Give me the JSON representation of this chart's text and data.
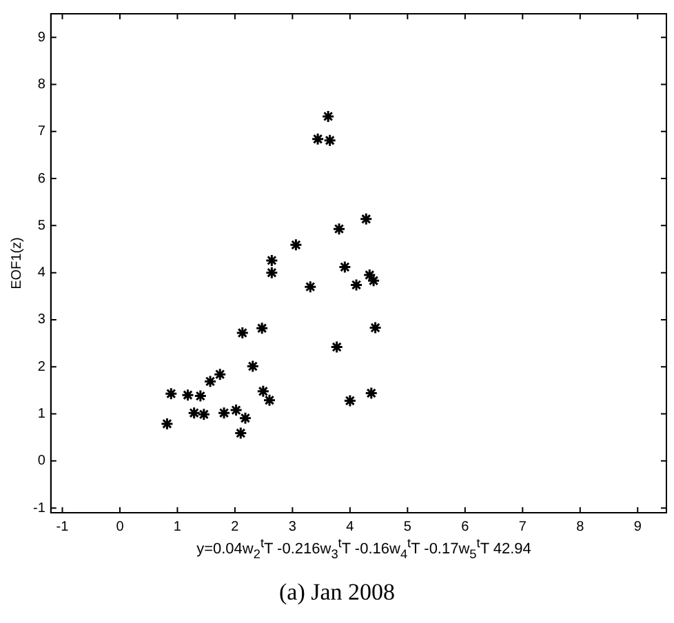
{
  "chart_data": {
    "type": "scatter",
    "xlabel": "y=0.04w$_{2}$$^{t}$T -0.216w$_{3}$$^{t}$T -0.16w$_{4}$$^{t}$T -0.17w$_{5}$$^{t}$T 42.94",
    "ylabel": "EOF1(z)",
    "annotations": [
      "(a) Jan 2008"
    ],
    "x": [
      0.82,
      0.89,
      1.18,
      1.4,
      1.29,
      1.46,
      1.57,
      1.74,
      1.81,
      2.02,
      2.18,
      2.1,
      2.13,
      2.31,
      2.47,
      2.49,
      2.6,
      2.64,
      2.64,
      3.06,
      3.31,
      3.91,
      4.11,
      4.34,
      4.41,
      4.44,
      3.77,
      4.0,
      4.37,
      3.62,
      3.44,
      3.65,
      4.28,
      3.81
    ],
    "values": [
      0.79,
      1.43,
      1.4,
      1.38,
      1.02,
      0.99,
      1.69,
      1.84,
      1.02,
      1.08,
      0.91,
      0.59,
      2.72,
      2.01,
      2.82,
      1.48,
      1.29,
      4.26,
      4.0,
      4.59,
      3.7,
      4.12,
      3.74,
      3.95,
      3.83,
      2.83,
      2.42,
      1.28,
      1.44,
      7.32,
      6.84,
      6.81,
      5.14,
      4.93
    ],
    "color": "#000000",
    "marker": "cross",
    "xlim": [
      -1.2,
      9.5
    ],
    "ylim": [
      -1.1,
      9.5
    ],
    "xticks": [
      -1,
      0,
      1,
      2,
      3,
      4,
      5,
      6,
      7,
      8,
      9
    ],
    "yticks": [
      -1,
      0,
      1,
      2,
      3,
      4,
      5,
      6,
      7,
      8,
      9
    ],
    "grid": false,
    "legend": false
  }
}
